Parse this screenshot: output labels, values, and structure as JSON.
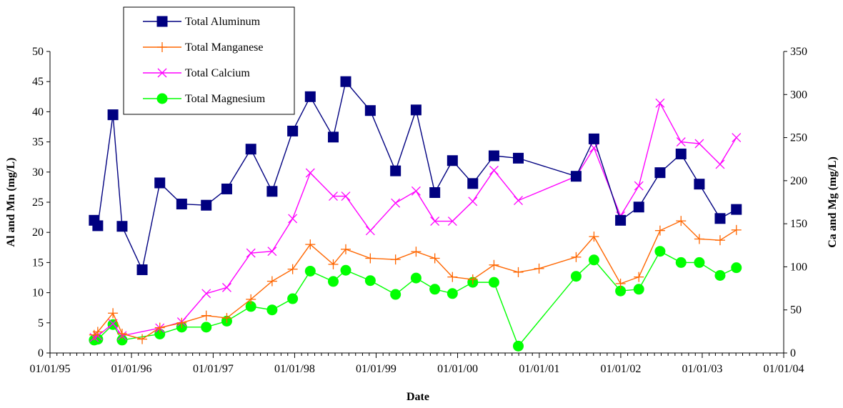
{
  "chart_data": {
    "type": "line",
    "xlabel": "Date",
    "ylabel_left": "Al and Mn (mg/L)",
    "ylabel_right": "Ca and Mg (mg/L)",
    "x_axis": {
      "type": "date",
      "range": [
        "1995-01-01",
        "2004-01-01"
      ],
      "tick_labels": [
        {
          "date": "1995-01-01",
          "label": "01/01/95"
        },
        {
          "date": "1996-01-01",
          "label": "01/01/96"
        },
        {
          "date": "1997-01-01",
          "label": "01/01/97"
        },
        {
          "date": "1998-01-01",
          "label": "01/01/98"
        },
        {
          "date": "1999-01-01",
          "label": "01/01/99"
        },
        {
          "date": "2000-01-01",
          "label": "01/01/00"
        },
        {
          "date": "2001-01-01",
          "label": "01/01/01"
        },
        {
          "date": "2002-01-01",
          "label": "01/01/02"
        },
        {
          "date": "2003-01-01",
          "label": "01/01/03"
        },
        {
          "date": "2004-01-01",
          "label": "01/01/04"
        }
      ]
    },
    "y_left": {
      "range": [
        0,
        50
      ],
      "ticks": [
        "0",
        "5",
        "10",
        "15",
        "20",
        "25",
        "30",
        "35",
        "40",
        "45",
        "50"
      ]
    },
    "y_right": {
      "range": [
        0,
        350
      ],
      "ticks": [
        "0",
        "50",
        "100",
        "150",
        "200",
        "250",
        "300",
        "350"
      ]
    },
    "grid": false,
    "legend_position": "top-left",
    "series": [
      {
        "name": "Total Aluminum",
        "axis": "left",
        "color": "#000080",
        "marker": "square",
        "points": [
          [
            "1995-07-18",
            22.0
          ],
          [
            "1995-08-03",
            21.1
          ],
          [
            "1995-10-10",
            39.5
          ],
          [
            "1995-11-20",
            21.0
          ],
          [
            "1996-02-18",
            13.8
          ],
          [
            "1996-05-07",
            28.2
          ],
          [
            "1996-08-13",
            24.7
          ],
          [
            "1996-12-01",
            24.5
          ],
          [
            "1997-03-03",
            27.2
          ],
          [
            "1997-06-19",
            33.8
          ],
          [
            "1997-09-22",
            26.8
          ],
          [
            "1997-12-23",
            36.8
          ],
          [
            "1998-03-12",
            42.5
          ],
          [
            "1998-06-23",
            35.8
          ],
          [
            "1998-08-18",
            45.0
          ],
          [
            "1998-12-06",
            40.2
          ],
          [
            "1999-03-29",
            30.2
          ],
          [
            "1999-06-29",
            40.3
          ],
          [
            "1999-09-21",
            26.6
          ],
          [
            "1999-12-09",
            31.9
          ],
          [
            "2000-03-09",
            28.1
          ],
          [
            "2000-06-12",
            32.7
          ],
          [
            "2000-09-29",
            32.3
          ],
          [
            "2001-06-15",
            29.3
          ],
          [
            "2001-09-03",
            35.5
          ],
          [
            "2001-12-31",
            22.0
          ],
          [
            "2002-03-23",
            24.2
          ],
          [
            "2002-06-26",
            29.9
          ],
          [
            "2002-09-28",
            33.0
          ],
          [
            "2002-12-19",
            28.0
          ],
          [
            "2003-03-22",
            22.3
          ],
          [
            "2003-06-03",
            23.8
          ]
        ]
      },
      {
        "name": "Total Manganese",
        "axis": "left",
        "color": "#FF6600",
        "marker": "plus",
        "points": [
          [
            "1995-07-18",
            3.0
          ],
          [
            "1995-08-03",
            3.5
          ],
          [
            "1995-10-10",
            6.6
          ],
          [
            "1995-11-20",
            3.2
          ],
          [
            "1996-02-18",
            2.3
          ],
          [
            "1996-05-07",
            4.2
          ],
          [
            "1996-08-13",
            5.0
          ],
          [
            "1996-12-01",
            6.2
          ],
          [
            "1997-03-03",
            5.8
          ],
          [
            "1997-06-19",
            8.9
          ],
          [
            "1997-09-22",
            11.9
          ],
          [
            "1997-12-23",
            13.9
          ],
          [
            "1998-03-12",
            18.0
          ],
          [
            "1998-06-23",
            14.7
          ],
          [
            "1998-08-18",
            17.2
          ],
          [
            "1998-12-06",
            15.7
          ],
          [
            "1999-03-29",
            15.5
          ],
          [
            "1999-06-29",
            16.8
          ],
          [
            "1999-09-21",
            15.7
          ],
          [
            "1999-12-09",
            12.6
          ],
          [
            "2000-03-09",
            12.2
          ],
          [
            "2000-06-12",
            14.6
          ],
          [
            "2000-09-29",
            13.4
          ],
          [
            "2000-12-31",
            14.0
          ],
          [
            "2001-06-15",
            15.9
          ],
          [
            "2001-09-03",
            19.3
          ],
          [
            "2001-12-31",
            11.5
          ],
          [
            "2002-03-23",
            12.6
          ],
          [
            "2002-06-26",
            20.3
          ],
          [
            "2002-09-28",
            21.9
          ],
          [
            "2002-12-19",
            18.9
          ],
          [
            "2003-03-22",
            18.7
          ],
          [
            "2003-06-03",
            20.4
          ]
        ]
      },
      {
        "name": "Total Calcium",
        "axis": "right",
        "color": "#FF00FF",
        "marker": "x",
        "points": [
          [
            "1995-07-18",
            18
          ],
          [
            "1995-08-03",
            20
          ],
          [
            "1995-10-10",
            34
          ],
          [
            "1995-11-20",
            20
          ],
          [
            "1996-05-07",
            29
          ],
          [
            "1996-08-13",
            36
          ],
          [
            "1996-12-01",
            69
          ],
          [
            "1997-03-03",
            76
          ],
          [
            "1997-06-19",
            116
          ],
          [
            "1997-09-22",
            118
          ],
          [
            "1997-12-23",
            156
          ],
          [
            "1998-03-12",
            209
          ],
          [
            "1998-06-23",
            182
          ],
          [
            "1998-08-18",
            182
          ],
          [
            "1998-12-06",
            142
          ],
          [
            "1999-03-29",
            174
          ],
          [
            "1999-06-29",
            188
          ],
          [
            "1999-09-21",
            153
          ],
          [
            "1999-12-09",
            153
          ],
          [
            "2000-03-09",
            176
          ],
          [
            "2000-06-12",
            212
          ],
          [
            "2000-09-29",
            177
          ],
          [
            "2001-06-15",
            205
          ],
          [
            "2001-09-03",
            238
          ],
          [
            "2001-12-31",
            159
          ],
          [
            "2002-03-23",
            194
          ],
          [
            "2002-06-26",
            290
          ],
          [
            "2002-09-28",
            245
          ],
          [
            "2002-12-19",
            243
          ],
          [
            "2003-03-22",
            219
          ],
          [
            "2003-06-03",
            250
          ]
        ]
      },
      {
        "name": "Total Magnesium",
        "axis": "right",
        "color": "#00FF00",
        "marker": "circle",
        "points": [
          [
            "1995-07-18",
            15
          ],
          [
            "1995-08-03",
            16
          ],
          [
            "1995-10-10",
            33
          ],
          [
            "1995-11-20",
            15
          ],
          [
            "1996-05-07",
            22
          ],
          [
            "1996-08-13",
            30
          ],
          [
            "1996-12-01",
            30
          ],
          [
            "1997-03-03",
            37
          ],
          [
            "1997-06-19",
            54
          ],
          [
            "1997-09-22",
            50
          ],
          [
            "1997-12-23",
            63
          ],
          [
            "1998-03-12",
            95
          ],
          [
            "1998-06-23",
            83
          ],
          [
            "1998-08-18",
            96
          ],
          [
            "1998-12-06",
            84
          ],
          [
            "1999-03-29",
            68
          ],
          [
            "1999-06-29",
            87
          ],
          [
            "1999-09-21",
            74
          ],
          [
            "1999-12-09",
            69
          ],
          [
            "2000-03-09",
            82
          ],
          [
            "2000-06-12",
            82
          ],
          [
            "2000-09-29",
            8
          ],
          [
            "2001-06-15",
            89
          ],
          [
            "2001-09-03",
            108
          ],
          [
            "2001-12-31",
            72
          ],
          [
            "2002-03-23",
            74
          ],
          [
            "2002-06-26",
            118
          ],
          [
            "2002-09-28",
            105
          ],
          [
            "2002-12-19",
            105
          ],
          [
            "2003-03-22",
            90
          ],
          [
            "2003-06-03",
            99
          ]
        ]
      }
    ]
  }
}
